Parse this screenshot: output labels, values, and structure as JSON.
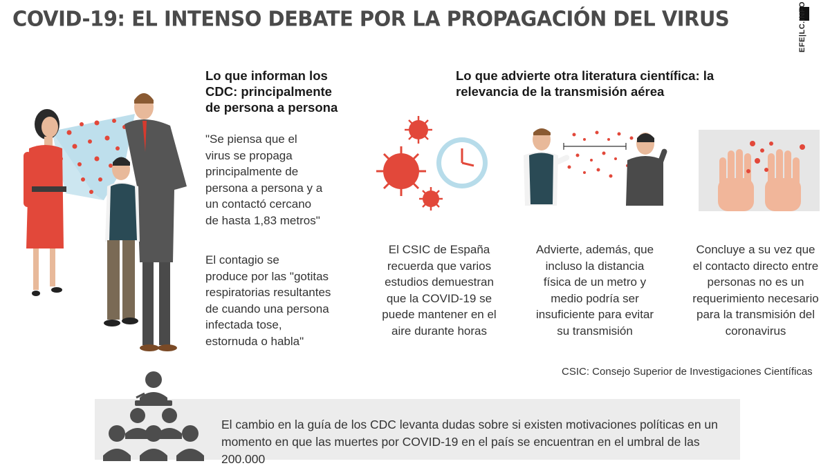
{
  "title": "COVID-19: EL INTENSO DEBATE POR LA PROPAGACIÓN DEL VIRUS",
  "brand": "EFE|LC.INFO",
  "cdc": {
    "heading": [
      "Lo que informan los",
      "CDC: principalmente",
      "de persona a persona"
    ],
    "quote": [
      "\"Se piensa que el",
      "virus se propaga",
      "principalmente de",
      "persona a persona y a",
      "un contactó cercano",
      "de hasta 1,83 metros\""
    ],
    "contagio": [
      "El contagio se",
      "produce por las \"gotitas",
      "respiratorias resultantes",
      "de cuando una persona",
      "infectada tose,",
      "estornuda o habla\""
    ]
  },
  "literature": {
    "heading": [
      "Lo que advierte otra literatura científica: la",
      "relevancia de la transmisión aérea"
    ],
    "col1": [
      "El CSIC de España",
      "recuerda que varios",
      "estudios demuestran",
      "que la COVID-19 se",
      "puede mantener en el",
      "aire durante horas"
    ],
    "col2": [
      "Advierte, además, que",
      "incluso la distancia",
      "física de un metro y",
      "medio podría ser",
      "insuficiente para evitar",
      "su transmisión"
    ],
    "col3": [
      "Concluye a su vez que",
      "el contacto directo entre",
      "personas no es un",
      "requerimiento necesario",
      "para la transmisión del",
      "coronavirus"
    ]
  },
  "footnote": "CSIC: Consejo Superior de Investigaciones Científicas",
  "bottom": [
    "El cambio en la guía de los CDC levanta dudas sobre si existen motivaciones políticas en un",
    "momento en que las muertes por COVID-19 en el país se encuentran en el umbral de las 200.000"
  ],
  "colors": {
    "title": "#4a4a4a",
    "virus": "#e2483a",
    "woman": "#e2483a",
    "spray": "#b7dcea",
    "band": "#ececec"
  }
}
